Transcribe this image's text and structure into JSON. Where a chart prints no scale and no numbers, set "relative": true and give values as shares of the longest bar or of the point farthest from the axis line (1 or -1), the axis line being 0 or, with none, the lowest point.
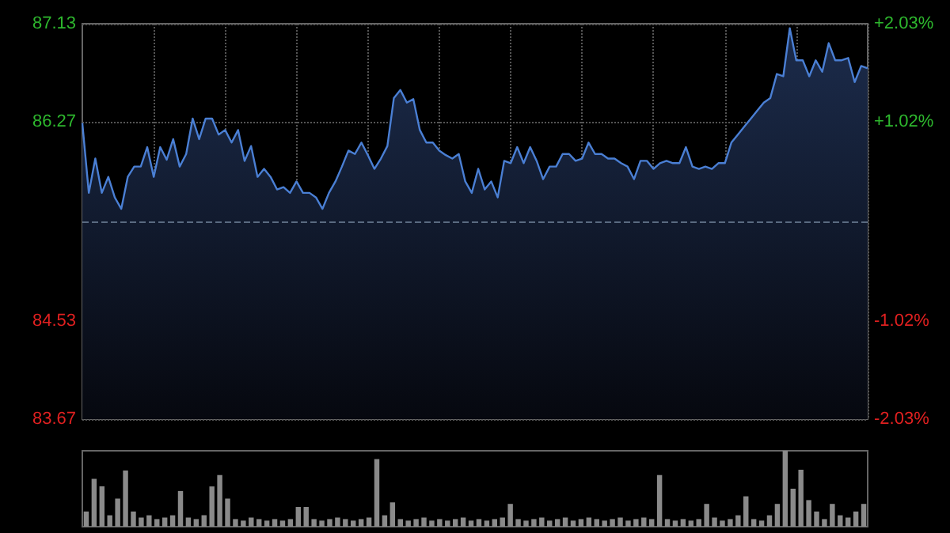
{
  "chart_data": [
    {
      "type": "area",
      "categories": [
        null,
        null,
        null,
        null,
        null,
        null,
        null,
        null,
        null,
        null,
        null,
        null,
        null,
        null,
        null,
        null,
        null,
        null,
        null,
        null,
        null,
        null,
        null,
        null,
        null,
        null,
        null,
        null,
        null,
        null,
        null,
        null,
        null,
        null,
        null,
        null,
        null,
        null,
        null,
        null,
        null,
        null,
        null,
        null,
        null,
        null,
        null,
        null,
        null,
        null,
        null,
        null,
        null,
        null,
        null,
        null,
        null,
        null,
        null,
        null,
        null,
        null,
        null,
        null,
        null,
        null,
        null,
        null,
        null,
        null,
        null,
        null,
        null,
        null,
        null,
        null,
        null,
        null,
        null,
        null,
        null,
        null,
        null,
        null,
        null,
        null,
        null,
        null,
        null,
        null,
        null,
        null,
        null,
        null,
        null,
        null,
        null,
        null,
        null,
        null,
        null,
        null,
        null,
        null,
        null,
        null,
        null,
        null,
        null,
        null,
        null,
        null,
        null,
        null,
        null,
        null,
        null,
        null,
        null,
        null,
        null,
        null
      ],
      "series": [
        {
          "color": "#4a7fd4",
          "values": [
            86.26,
            85.65,
            85.95,
            85.65,
            85.79,
            85.61,
            85.51,
            85.79,
            85.88,
            85.88,
            86.05,
            85.79,
            86.05,
            85.94,
            86.12,
            85.88,
            85.99,
            86.3,
            86.12,
            86.3,
            86.3,
            86.16,
            86.2,
            86.09,
            86.2,
            85.93,
            86.06,
            85.79,
            85.86,
            85.79,
            85.68,
            85.7,
            85.65,
            85.75,
            85.65,
            85.65,
            85.61,
            85.51,
            85.65,
            85.75,
            85.88,
            86.02,
            85.99,
            86.09,
            85.98,
            85.86,
            85.95,
            86.06,
            86.48,
            86.55,
            86.44,
            86.47,
            86.2,
            86.09,
            86.09,
            86.02,
            85.98,
            85.95,
            85.99,
            85.75,
            85.65,
            85.86,
            85.68,
            85.75,
            85.61,
            85.93,
            85.91,
            86.05,
            85.91,
            86.05,
            85.93,
            85.77,
            85.88,
            85.88,
            85.99,
            85.99,
            85.93,
            85.95,
            86.09,
            85.99,
            85.99,
            85.95,
            85.95,
            85.91,
            85.88,
            85.77,
            85.93,
            85.93,
            85.86,
            85.91,
            85.93,
            85.91,
            85.91,
            86.05,
            85.88,
            85.86,
            85.88,
            85.86,
            85.91,
            85.91,
            86.09,
            86.16,
            86.23,
            86.3,
            86.37,
            86.44,
            86.48,
            86.69,
            86.67,
            87.09,
            86.81,
            86.81,
            86.67,
            86.81,
            86.71,
            86.96,
            86.81,
            86.81,
            86.83,
            86.62,
            86.76,
            86.74
          ]
        }
      ],
      "ylim": [
        83.67,
        87.13
      ],
      "yticks": [
        83.67,
        84.53,
        86.27,
        87.13
      ],
      "y2lim": [
        -2.03,
        2.03
      ],
      "y2ticks": [
        {
          "value": -2.03,
          "label": "-2.03%"
        },
        {
          "value": -1.02,
          "label": "-1.02%"
        },
        {
          "value": 1.02,
          "label": "+1.02%"
        },
        {
          "value": 2.03,
          "label": "+2.03%"
        }
      ],
      "ref_lines": [
        {
          "axis": "y",
          "value": 85.4,
          "color": "#5a6a80",
          "line_style": "dashed"
        }
      ],
      "grid": true,
      "line_style": "solid"
    },
    {
      "type": "bar",
      "relative": true,
      "color": "#8a8a8a",
      "categories": [
        null,
        null,
        null,
        null,
        null,
        null,
        null,
        null,
        null,
        null,
        null,
        null,
        null,
        null,
        null,
        null,
        null,
        null,
        null,
        null,
        null,
        null,
        null,
        null,
        null,
        null,
        null,
        null,
        null,
        null,
        null,
        null,
        null,
        null,
        null,
        null,
        null,
        null,
        null,
        null,
        null,
        null,
        null,
        null,
        null,
        null,
        null,
        null,
        null,
        null,
        null,
        null,
        null,
        null,
        null,
        null,
        null,
        null,
        null,
        null,
        null,
        null,
        null,
        null,
        null,
        null,
        null,
        null,
        null,
        null,
        null,
        null,
        null,
        null,
        null,
        null,
        null,
        null,
        null,
        null,
        null,
        null,
        null,
        null,
        null,
        null,
        null,
        null,
        null,
        null,
        null,
        null,
        null,
        null,
        null,
        null,
        null,
        null,
        null,
        null
      ],
      "values": [
        0.2,
        0.63,
        0.53,
        0.15,
        0.37,
        0.74,
        0.2,
        0.12,
        0.15,
        0.1,
        0.12,
        0.15,
        0.47,
        0.12,
        0.1,
        0.15,
        0.53,
        0.68,
        0.37,
        0.1,
        0.08,
        0.12,
        0.1,
        0.08,
        0.1,
        0.08,
        0.1,
        0.26,
        0.26,
        0.1,
        0.08,
        0.1,
        0.12,
        0.1,
        0.08,
        0.1,
        0.12,
        0.89,
        0.15,
        0.32,
        0.1,
        0.08,
        0.1,
        0.12,
        0.08,
        0.1,
        0.08,
        0.1,
        0.12,
        0.08,
        0.1,
        0.08,
        0.1,
        0.12,
        0.3,
        0.1,
        0.08,
        0.1,
        0.12,
        0.08,
        0.1,
        0.12,
        0.08,
        0.1,
        0.12,
        0.1,
        0.08,
        0.1,
        0.12,
        0.08,
        0.1,
        0.12,
        0.1,
        0.68,
        0.1,
        0.08,
        0.1,
        0.08,
        0.1,
        0.3,
        0.12,
        0.08,
        0.1,
        0.15,
        0.4,
        0.1,
        0.08,
        0.15,
        0.3,
        1,
        0.5,
        0.75,
        0.35,
        0.2,
        0.1,
        0.3,
        0.15,
        0.12,
        0.2,
        0.3
      ]
    }
  ]
}
